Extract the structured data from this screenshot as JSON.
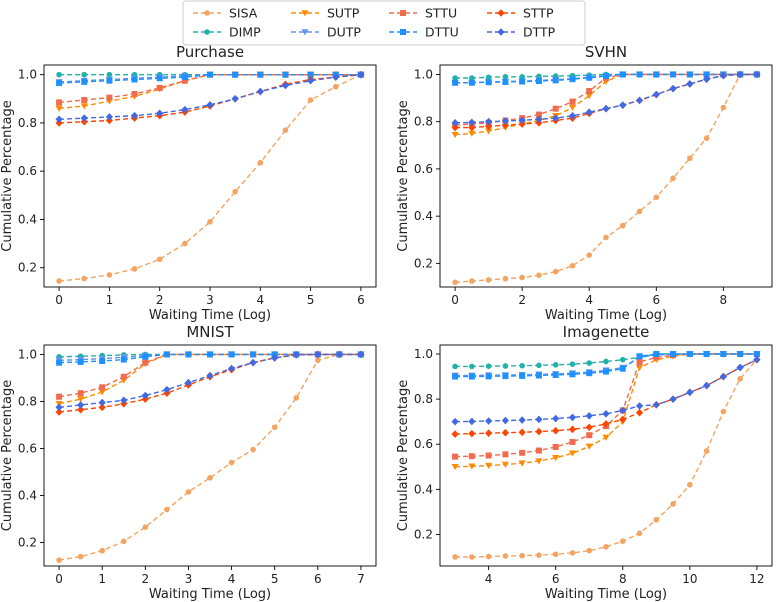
{
  "legend": {
    "entries": [
      {
        "key": "SISA",
        "label": "SISA",
        "color": "#F4A460",
        "marker": "circle"
      },
      {
        "key": "DIMP",
        "label": "DIMP",
        "color": "#20B2AA",
        "marker": "circle"
      },
      {
        "key": "SUTP",
        "label": "SUTP",
        "color": "#FF8C00",
        "marker": "triangle-down"
      },
      {
        "key": "DUTP",
        "label": "DUTP",
        "color": "#6495ED",
        "marker": "triangle-down"
      },
      {
        "key": "STTU",
        "label": "STTU",
        "color": "#F26B4E",
        "marker": "square"
      },
      {
        "key": "DTTU",
        "label": "DTTU",
        "color": "#1E90FF",
        "marker": "square"
      },
      {
        "key": "STTP",
        "label": "STTP",
        "color": "#FF4500",
        "marker": "diamond"
      },
      {
        "key": "DTTP",
        "label": "DTTP",
        "color": "#4169E1",
        "marker": "diamond"
      }
    ]
  },
  "chart_data": [
    {
      "type": "line",
      "title": "Purchase",
      "xlabel": "Waiting Time (Log)",
      "ylabel": "Cumulative Percentage",
      "xlim": [
        -0.3,
        6.3
      ],
      "ylim": [
        0.12,
        1.04
      ],
      "xticks": [
        0,
        1,
        2,
        3,
        4,
        5,
        6
      ],
      "yticks": [
        0.2,
        0.4,
        0.6,
        0.8,
        1.0
      ],
      "ytick_labels": [
        "0.2",
        "0.4",
        "0.6",
        "0.8",
        "1.0"
      ],
      "x": [
        0,
        0.5,
        1,
        1.5,
        2,
        2.5,
        3,
        3.5,
        4,
        4.5,
        5,
        5.5,
        6
      ],
      "series": [
        {
          "name": "SISA",
          "values": [
            0.145,
            0.155,
            0.17,
            0.195,
            0.235,
            0.3,
            0.39,
            0.515,
            0.635,
            0.77,
            0.895,
            0.95,
            1.0
          ]
        },
        {
          "name": "DIMP",
          "values": [
            1.0,
            1.0,
            1.0,
            1.0,
            1.0,
            1.0,
            1.0,
            1.0,
            1.0,
            1.0,
            1.0,
            1.0,
            1.0
          ]
        },
        {
          "name": "SUTP",
          "values": [
            0.86,
            0.87,
            0.89,
            0.91,
            0.94,
            0.975,
            1.0,
            1.0,
            1.0,
            1.0,
            1.0,
            1.0,
            1.0
          ]
        },
        {
          "name": "DUTP",
          "values": [
            0.97,
            0.975,
            0.98,
            0.985,
            0.99,
            0.995,
            1.0,
            1.0,
            1.0,
            1.0,
            1.0,
            1.0,
            1.0
          ]
        },
        {
          "name": "STTU",
          "values": [
            0.885,
            0.895,
            0.905,
            0.92,
            0.945,
            0.975,
            1.0,
            1.0,
            1.0,
            1.0,
            1.0,
            1.0,
            1.0
          ]
        },
        {
          "name": "DTTU",
          "values": [
            0.965,
            0.97,
            0.975,
            0.98,
            0.985,
            0.99,
            1.0,
            1.0,
            1.0,
            1.0,
            1.0,
            1.0,
            1.0
          ]
        },
        {
          "name": "STTP",
          "values": [
            0.8,
            0.805,
            0.81,
            0.82,
            0.83,
            0.845,
            0.87,
            0.9,
            0.93,
            0.96,
            0.98,
            0.99,
            1.0
          ]
        },
        {
          "name": "DTTP",
          "values": [
            0.815,
            0.82,
            0.825,
            0.83,
            0.84,
            0.855,
            0.875,
            0.9,
            0.93,
            0.955,
            0.975,
            0.99,
            1.0
          ]
        }
      ]
    },
    {
      "type": "line",
      "title": "SVHN",
      "xlabel": "Waiting Time (Log)",
      "ylabel": "Cumulative Percentage",
      "xlim": [
        -0.45,
        9.45
      ],
      "ylim": [
        0.1,
        1.04
      ],
      "xticks": [
        0,
        2,
        4,
        6,
        8
      ],
      "yticks": [
        0.2,
        0.4,
        0.6,
        0.8,
        1.0
      ],
      "ytick_labels": [
        "0.2",
        "0.4",
        "0.6",
        "0.8",
        "1.0"
      ],
      "x": [
        0,
        0.5,
        1,
        1.5,
        2,
        2.5,
        3,
        3.5,
        4,
        4.5,
        5,
        5.5,
        6,
        6.5,
        7,
        7.5,
        8,
        8.5,
        9
      ],
      "series": [
        {
          "name": "SISA",
          "values": [
            0.12,
            0.125,
            0.13,
            0.135,
            0.14,
            0.15,
            0.165,
            0.19,
            0.235,
            0.31,
            0.36,
            0.42,
            0.48,
            0.56,
            0.645,
            0.73,
            0.86,
            1.0,
            1.0
          ]
        },
        {
          "name": "DIMP",
          "values": [
            0.985,
            0.985,
            0.988,
            0.99,
            0.99,
            0.992,
            0.993,
            0.995,
            0.997,
            1.0,
            1.0,
            1.0,
            1.0,
            1.0,
            1.0,
            1.0,
            1.0,
            1.0,
            1.0
          ]
        },
        {
          "name": "SUTP",
          "values": [
            0.745,
            0.75,
            0.76,
            0.775,
            0.79,
            0.805,
            0.825,
            0.86,
            0.91,
            0.97,
            1.0,
            1.0,
            1.0,
            1.0,
            1.0,
            1.0,
            1.0,
            1.0,
            1.0
          ]
        },
        {
          "name": "DUTP",
          "values": [
            0.965,
            0.965,
            0.968,
            0.97,
            0.972,
            0.975,
            0.978,
            0.982,
            0.988,
            0.995,
            1.0,
            1.0,
            1.0,
            1.0,
            1.0,
            1.0,
            1.0,
            1.0,
            1.0
          ]
        },
        {
          "name": "STTU",
          "values": [
            0.785,
            0.79,
            0.795,
            0.805,
            0.815,
            0.83,
            0.855,
            0.885,
            0.93,
            0.985,
            1.0,
            1.0,
            1.0,
            1.0,
            1.0,
            1.0,
            1.0,
            1.0,
            1.0
          ]
        },
        {
          "name": "DTTU",
          "values": [
            0.965,
            0.965,
            0.967,
            0.968,
            0.97,
            0.972,
            0.975,
            0.98,
            0.986,
            0.993,
            1.0,
            1.0,
            1.0,
            1.0,
            1.0,
            1.0,
            1.0,
            1.0,
            1.0
          ]
        },
        {
          "name": "STTP",
          "values": [
            0.775,
            0.775,
            0.78,
            0.785,
            0.79,
            0.795,
            0.805,
            0.815,
            0.835,
            0.855,
            0.87,
            0.89,
            0.915,
            0.94,
            0.96,
            0.98,
            0.995,
            1.0,
            1.0
          ]
        },
        {
          "name": "DTTP",
          "values": [
            0.795,
            0.797,
            0.8,
            0.803,
            0.806,
            0.81,
            0.815,
            0.825,
            0.84,
            0.855,
            0.87,
            0.89,
            0.915,
            0.94,
            0.96,
            0.98,
            0.995,
            1.0,
            1.0
          ]
        }
      ]
    },
    {
      "type": "line",
      "title": "MNIST",
      "xlabel": "Waiting Time (Log)",
      "ylabel": "Cumulative Percentage",
      "xlim": [
        -0.35,
        7.35
      ],
      "ylim": [
        0.1,
        1.04
      ],
      "xticks": [
        0,
        1,
        2,
        3,
        4,
        5,
        6,
        7
      ],
      "yticks": [
        0.2,
        0.4,
        0.6,
        0.8,
        1.0
      ],
      "ytick_labels": [
        "0.2",
        "0.4",
        "0.6",
        "0.8",
        "1.0"
      ],
      "x": [
        0,
        0.5,
        1,
        1.5,
        2,
        2.5,
        3,
        3.5,
        4,
        4.5,
        5,
        5.5,
        6,
        6.5,
        7
      ],
      "series": [
        {
          "name": "SISA",
          "values": [
            0.125,
            0.14,
            0.165,
            0.205,
            0.265,
            0.34,
            0.415,
            0.475,
            0.54,
            0.595,
            0.69,
            0.815,
            0.975,
            1.0,
            1.0
          ]
        },
        {
          "name": "DIMP",
          "values": [
            0.99,
            0.992,
            0.995,
            0.998,
            1.0,
            1.0,
            1.0,
            1.0,
            1.0,
            1.0,
            1.0,
            1.0,
            1.0,
            1.0,
            1.0
          ]
        },
        {
          "name": "SUTP",
          "values": [
            0.79,
            0.81,
            0.84,
            0.89,
            0.96,
            1.0,
            1.0,
            1.0,
            1.0,
            1.0,
            1.0,
            1.0,
            1.0,
            1.0,
            1.0
          ]
        },
        {
          "name": "DUTP",
          "values": [
            0.975,
            0.978,
            0.982,
            0.988,
            0.995,
            1.0,
            1.0,
            1.0,
            1.0,
            1.0,
            1.0,
            1.0,
            1.0,
            1.0,
            1.0
          ]
        },
        {
          "name": "STTU",
          "values": [
            0.82,
            0.835,
            0.86,
            0.905,
            0.965,
            1.0,
            1.0,
            1.0,
            1.0,
            1.0,
            1.0,
            1.0,
            1.0,
            1.0,
            1.0
          ]
        },
        {
          "name": "DTTU",
          "values": [
            0.965,
            0.968,
            0.972,
            0.978,
            0.99,
            1.0,
            1.0,
            1.0,
            1.0,
            1.0,
            1.0,
            1.0,
            1.0,
            1.0,
            1.0
          ]
        },
        {
          "name": "STTP",
          "values": [
            0.755,
            0.765,
            0.775,
            0.79,
            0.81,
            0.835,
            0.87,
            0.905,
            0.935,
            0.965,
            0.985,
            0.998,
            1.0,
            1.0,
            1.0
          ]
        },
        {
          "name": "DTTP",
          "values": [
            0.775,
            0.785,
            0.795,
            0.805,
            0.825,
            0.85,
            0.88,
            0.91,
            0.94,
            0.965,
            0.985,
            0.998,
            1.0,
            1.0,
            1.0
          ]
        }
      ]
    },
    {
      "type": "line",
      "title": "Imagenette",
      "xlabel": "Waiting Time (Log)",
      "ylabel": "Cumulative Percentage",
      "xlim": [
        2.55,
        12.45
      ],
      "ylim": [
        0.06,
        1.04
      ],
      "xticks": [
        4,
        6,
        8,
        10,
        12
      ],
      "yticks": [
        0.2,
        0.4,
        0.6,
        0.8,
        1.0
      ],
      "ytick_labels": [
        "0.2",
        "0.4",
        "0.6",
        "0.8",
        "1.0"
      ],
      "x": [
        3,
        3.5,
        4,
        4.5,
        5,
        5.5,
        6,
        6.5,
        7,
        7.5,
        8,
        8.5,
        9,
        9.5,
        10,
        10.5,
        11,
        11.5,
        12
      ],
      "series": [
        {
          "name": "SISA",
          "values": [
            0.1,
            0.1,
            0.102,
            0.104,
            0.106,
            0.108,
            0.112,
            0.118,
            0.128,
            0.145,
            0.17,
            0.205,
            0.265,
            0.335,
            0.42,
            0.57,
            0.745,
            0.89,
            0.975
          ]
        },
        {
          "name": "DIMP",
          "values": [
            0.945,
            0.945,
            0.946,
            0.947,
            0.948,
            0.95,
            0.952,
            0.955,
            0.96,
            0.967,
            0.975,
            0.985,
            1.0,
            1.0,
            1.0,
            1.0,
            1.0,
            1.0,
            1.0
          ]
        },
        {
          "name": "SUTP",
          "values": [
            0.5,
            0.502,
            0.505,
            0.51,
            0.516,
            0.525,
            0.54,
            0.56,
            0.59,
            0.63,
            0.7,
            0.94,
            0.975,
            0.99,
            1.0,
            1.0,
            1.0,
            1.0,
            1.0
          ]
        },
        {
          "name": "DUTP",
          "values": [
            0.905,
            0.905,
            0.906,
            0.907,
            0.908,
            0.91,
            0.912,
            0.915,
            0.92,
            0.928,
            0.94,
            0.985,
            0.995,
            1.0,
            1.0,
            1.0,
            1.0,
            1.0,
            1.0
          ]
        },
        {
          "name": "STTU",
          "values": [
            0.545,
            0.547,
            0.55,
            0.555,
            0.562,
            0.572,
            0.588,
            0.61,
            0.64,
            0.68,
            0.75,
            0.965,
            0.985,
            0.995,
            1.0,
            1.0,
            1.0,
            1.0,
            1.0
          ]
        },
        {
          "name": "DTTU",
          "values": [
            0.9,
            0.9,
            0.901,
            0.902,
            0.903,
            0.905,
            0.907,
            0.91,
            0.915,
            0.922,
            0.935,
            0.99,
            1.0,
            1.0,
            1.0,
            1.0,
            1.0,
            1.0,
            1.0
          ]
        },
        {
          "name": "STTP",
          "values": [
            0.645,
            0.647,
            0.649,
            0.651,
            0.653,
            0.656,
            0.66,
            0.666,
            0.675,
            0.69,
            0.71,
            0.74,
            0.775,
            0.8,
            0.83,
            0.86,
            0.9,
            0.94,
            0.975
          ]
        },
        {
          "name": "DTTP",
          "values": [
            0.7,
            0.701,
            0.703,
            0.705,
            0.707,
            0.71,
            0.714,
            0.719,
            0.726,
            0.735,
            0.75,
            0.77,
            0.775,
            0.8,
            0.83,
            0.86,
            0.9,
            0.94,
            0.975
          ]
        }
      ]
    }
  ]
}
